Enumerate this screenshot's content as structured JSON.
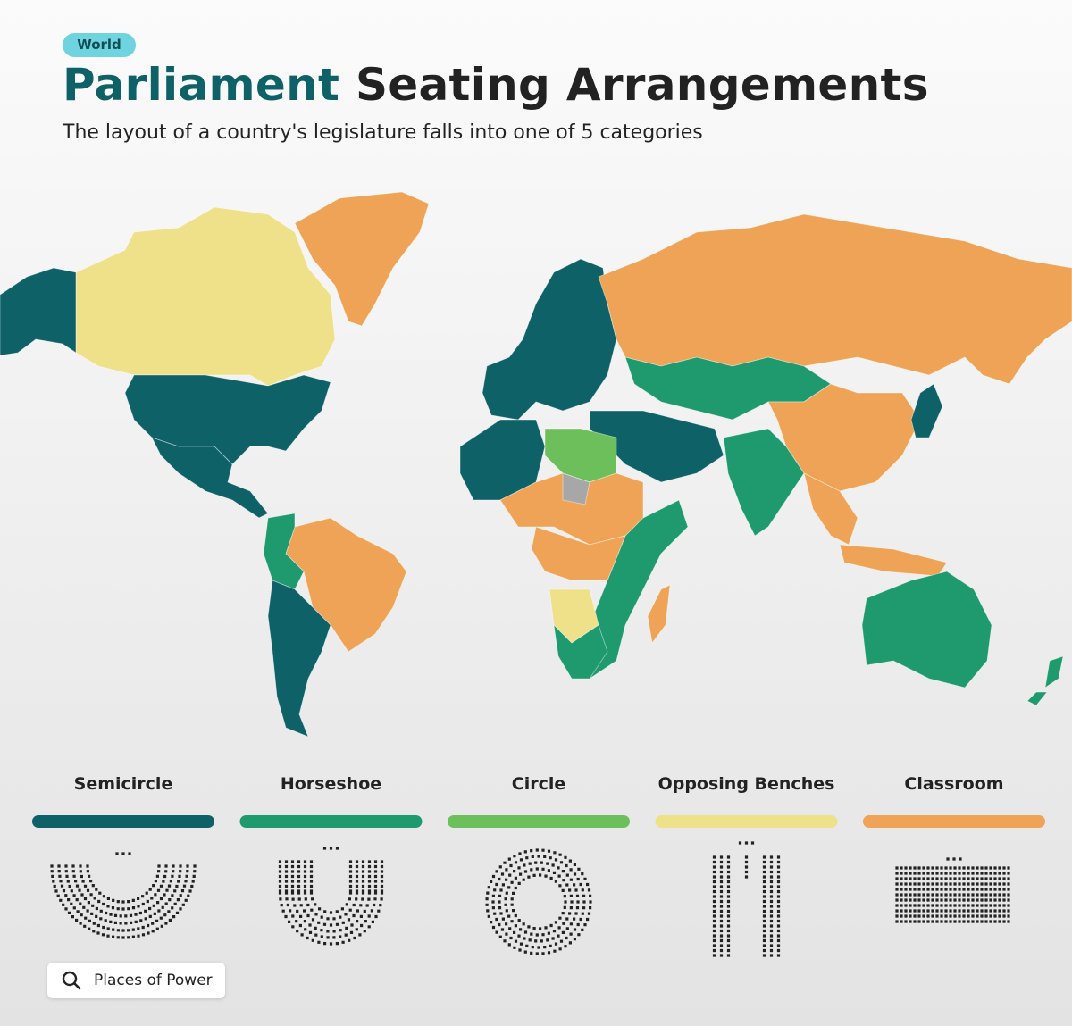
{
  "header": {
    "badge": "World",
    "title_highlight": "Parliament",
    "title_rest": "Seating Arrangements",
    "subtitle": "The layout of a country's legislature falls into one of 5 categories"
  },
  "legend": {
    "items": [
      {
        "label": "Semicircle",
        "color": "#0f6168"
      },
      {
        "label": "Horseshoe",
        "color": "#1f9a6e"
      },
      {
        "label": "Circle",
        "color": "#6cbf5a"
      },
      {
        "label": "Opposing Benches",
        "color": "#efe08a"
      },
      {
        "label": "Classroom",
        "color": "#eea356"
      }
    ]
  },
  "button": {
    "label": "Places of Power"
  }
}
